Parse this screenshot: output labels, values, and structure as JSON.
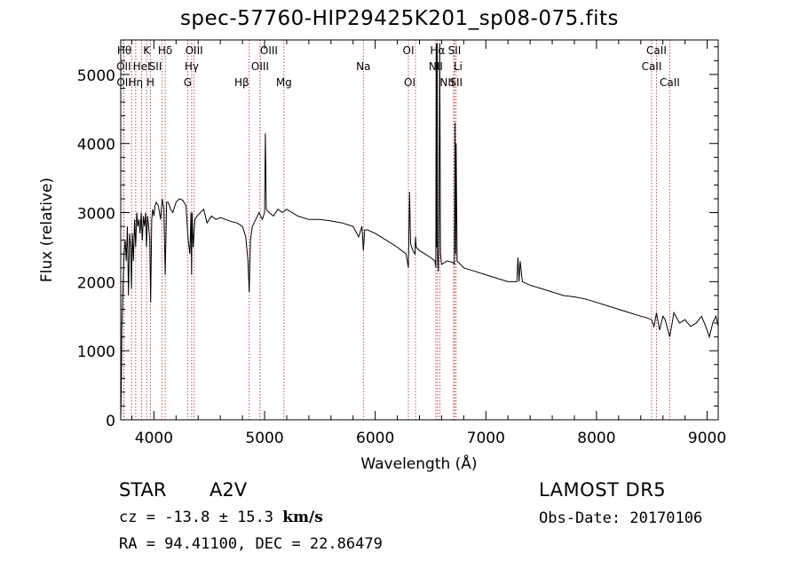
{
  "title": "spec-57760-HIP29425K201_sp08-075.fits",
  "info": {
    "object_class": "STAR",
    "subclass": "A2V",
    "survey": "LAMOST DR5",
    "cz_prefix": "cz = ",
    "cz_value": "-13.8 ± 15.3",
    "cz_unit": "km/s",
    "obs_date": "Obs-Date: 20170106",
    "ra_dec": "RA =  94.41100, DEC =  22.86479"
  },
  "chart_data": {
    "type": "line",
    "xlabel": "Wavelength (Å)",
    "ylabel": "Flux (relative)",
    "xlim": [
      3700,
      9100
    ],
    "ylim": [
      0,
      5500
    ],
    "xticks": [
      4000,
      5000,
      6000,
      7000,
      8000,
      9000
    ],
    "yticks": [
      0,
      1000,
      2000,
      3000,
      4000,
      5000
    ],
    "line_color": "#000000",
    "marker_line_color": "#c0504d",
    "series": [
      {
        "x": [
          3700,
          3705,
          3710,
          3720,
          3730,
          3740,
          3750,
          3760,
          3770,
          3780,
          3790,
          3797,
          3805,
          3815,
          3825,
          3835,
          3845,
          3855,
          3865,
          3875,
          3885,
          3895,
          3905,
          3915,
          3925,
          3933,
          3942,
          3952,
          3962,
          3970,
          3980,
          3990,
          4000,
          4010,
          4020,
          4040,
          4060,
          4075,
          4090,
          4102,
          4115,
          4130,
          4150,
          4170,
          4200,
          4230,
          4260,
          4290,
          4310,
          4325,
          4335,
          4340,
          4345,
          4355,
          4370,
          4390,
          4420,
          4450,
          4480,
          4520,
          4560,
          4600,
          4650,
          4700,
          4750,
          4800,
          4830,
          4850,
          4861,
          4872,
          4890,
          4920,
          4950,
          4980,
          5000,
          5007,
          5015,
          5040,
          5080,
          5120,
          5160,
          5200,
          5300,
          5400,
          5500,
          5600,
          5700,
          5800,
          5850,
          5880,
          5893,
          5905,
          5930,
          6000,
          6100,
          6200,
          6280,
          6300,
          6310,
          6320,
          6340,
          6360,
          6364,
          6370,
          6400,
          6450,
          6500,
          6540,
          6548,
          6552,
          6556,
          6560,
          6563,
          6566,
          6570,
          6575,
          6583,
          6590,
          6600,
          6650,
          6700,
          6716,
          6722,
          6726,
          6731,
          6740,
          6800,
          6900,
          7000,
          7100,
          7200,
          7280,
          7290,
          7300,
          7310,
          7330,
          7400,
          7500,
          7600,
          7700,
          7800,
          7900,
          8000,
          8100,
          8200,
          8300,
          8400,
          8450,
          8498,
          8520,
          8542,
          8570,
          8600,
          8620,
          8662,
          8700,
          8750,
          8800,
          8850,
          8900,
          8950,
          9000,
          9020,
          9050,
          9080,
          9100
        ],
        "y": [
          0,
          400,
          1300,
          1900,
          2400,
          2600,
          2300,
          2800,
          1800,
          2700,
          2500,
          1900,
          2700,
          2300,
          2900,
          2500,
          3000,
          2800,
          2900,
          2700,
          3000,
          2600,
          2950,
          2800,
          3000,
          2500,
          2950,
          2800,
          2600,
          1700,
          2900,
          3050,
          2950,
          3100,
          3150,
          3100,
          2900,
          3200,
          3050,
          2100,
          3150,
          3150,
          3050,
          3000,
          3150,
          3200,
          3180,
          3100,
          2600,
          2400,
          3000,
          2100,
          3000,
          2500,
          2900,
          2950,
          3000,
          3050,
          2850,
          2950,
          2900,
          2930,
          2900,
          2870,
          2850,
          2800,
          2650,
          2300,
          1850,
          2600,
          2800,
          2900,
          3000,
          2900,
          3000,
          4150,
          3050,
          3000,
          2950,
          3050,
          3000,
          3050,
          2950,
          2900,
          2900,
          2880,
          2850,
          2800,
          2650,
          2800,
          2450,
          2750,
          2750,
          2700,
          2600,
          2500,
          2400,
          2200,
          3300,
          2550,
          2450,
          2400,
          2650,
          2500,
          2450,
          2400,
          2350,
          2300,
          2200,
          5450,
          2500,
          5450,
          2400,
          2250,
          2150,
          2600,
          5450,
          2400,
          2250,
          2300,
          2280,
          2250,
          4300,
          2400,
          4000,
          2300,
          2200,
          2150,
          2100,
          2050,
          2000,
          2000,
          2350,
          2000,
          2300,
          2000,
          1950,
          1900,
          1850,
          1800,
          1780,
          1750,
          1700,
          1650,
          1600,
          1550,
          1500,
          1480,
          1450,
          1350,
          1550,
          1300,
          1500,
          1450,
          1200,
          1550,
          1400,
          1450,
          1350,
          1400,
          1500,
          1300,
          1200,
          1400,
          1500,
          1350
        ]
      }
    ],
    "lines": [
      {
        "label": "Hθ",
        "x": 3798,
        "row": 0,
        "anchor": "end"
      },
      {
        "label": "K",
        "x": 3934,
        "row": 0,
        "anchor": "middle"
      },
      {
        "label": "Hδ",
        "x": 4102,
        "row": 0,
        "anchor": "middle"
      },
      {
        "label": "OIII",
        "x": 4363,
        "row": 0,
        "anchor": "middle"
      },
      {
        "label": "OIII",
        "x": 4959,
        "row": 0,
        "anchor": "start"
      },
      {
        "label": "OI",
        "x": 6300,
        "row": 0,
        "anchor": "middle"
      },
      {
        "label": "Hα",
        "x": 6563,
        "row": 0,
        "anchor": "middle"
      },
      {
        "label": "SII",
        "x": 6717,
        "row": 0,
        "anchor": "middle"
      },
      {
        "label": "CaII",
        "x": 8542,
        "row": 0,
        "anchor": "middle"
      },
      {
        "label": "OII",
        "x": 3727,
        "row": 1,
        "anchor": "middle"
      },
      {
        "label": "HeI",
        "x": 3889,
        "row": 1,
        "anchor": "middle"
      },
      {
        "label": "SII",
        "x": 4072,
        "row": 1,
        "anchor": "end"
      },
      {
        "label": "Hγ",
        "x": 4341,
        "row": 1,
        "anchor": "middle"
      },
      {
        "label": "OIII",
        "x": 4959,
        "row": 1,
        "anchor": "middle"
      },
      {
        "label": "Na",
        "x": 5893,
        "row": 1,
        "anchor": "middle"
      },
      {
        "label": "NII",
        "x": 6548,
        "row": 1,
        "anchor": "middle"
      },
      {
        "label": "Li",
        "x": 6708,
        "row": 1,
        "anchor": "start"
      },
      {
        "label": "CaII",
        "x": 8498,
        "row": 1,
        "anchor": "middle"
      },
      {
        "label": "OII",
        "x": 3729,
        "row": 2,
        "anchor": "middle"
      },
      {
        "label": "Hη",
        "x": 3835,
        "row": 2,
        "anchor": "middle"
      },
      {
        "label": "H",
        "x": 3969,
        "row": 2,
        "anchor": "middle"
      },
      {
        "label": "G",
        "x": 4305,
        "row": 2,
        "anchor": "middle"
      },
      {
        "label": "Hβ",
        "x": 4861,
        "row": 2,
        "anchor": "end"
      },
      {
        "label": "Mg",
        "x": 5175,
        "row": 2,
        "anchor": "middle"
      },
      {
        "label": "OI",
        "x": 6364,
        "row": 2,
        "anchor": "end"
      },
      {
        "label": "NII",
        "x": 6584,
        "row": 2,
        "anchor": "start"
      },
      {
        "label": "SII",
        "x": 6731,
        "row": 2,
        "anchor": "middle"
      },
      {
        "label": "CaII",
        "x": 8662,
        "row": 2,
        "anchor": "middle"
      }
    ]
  }
}
